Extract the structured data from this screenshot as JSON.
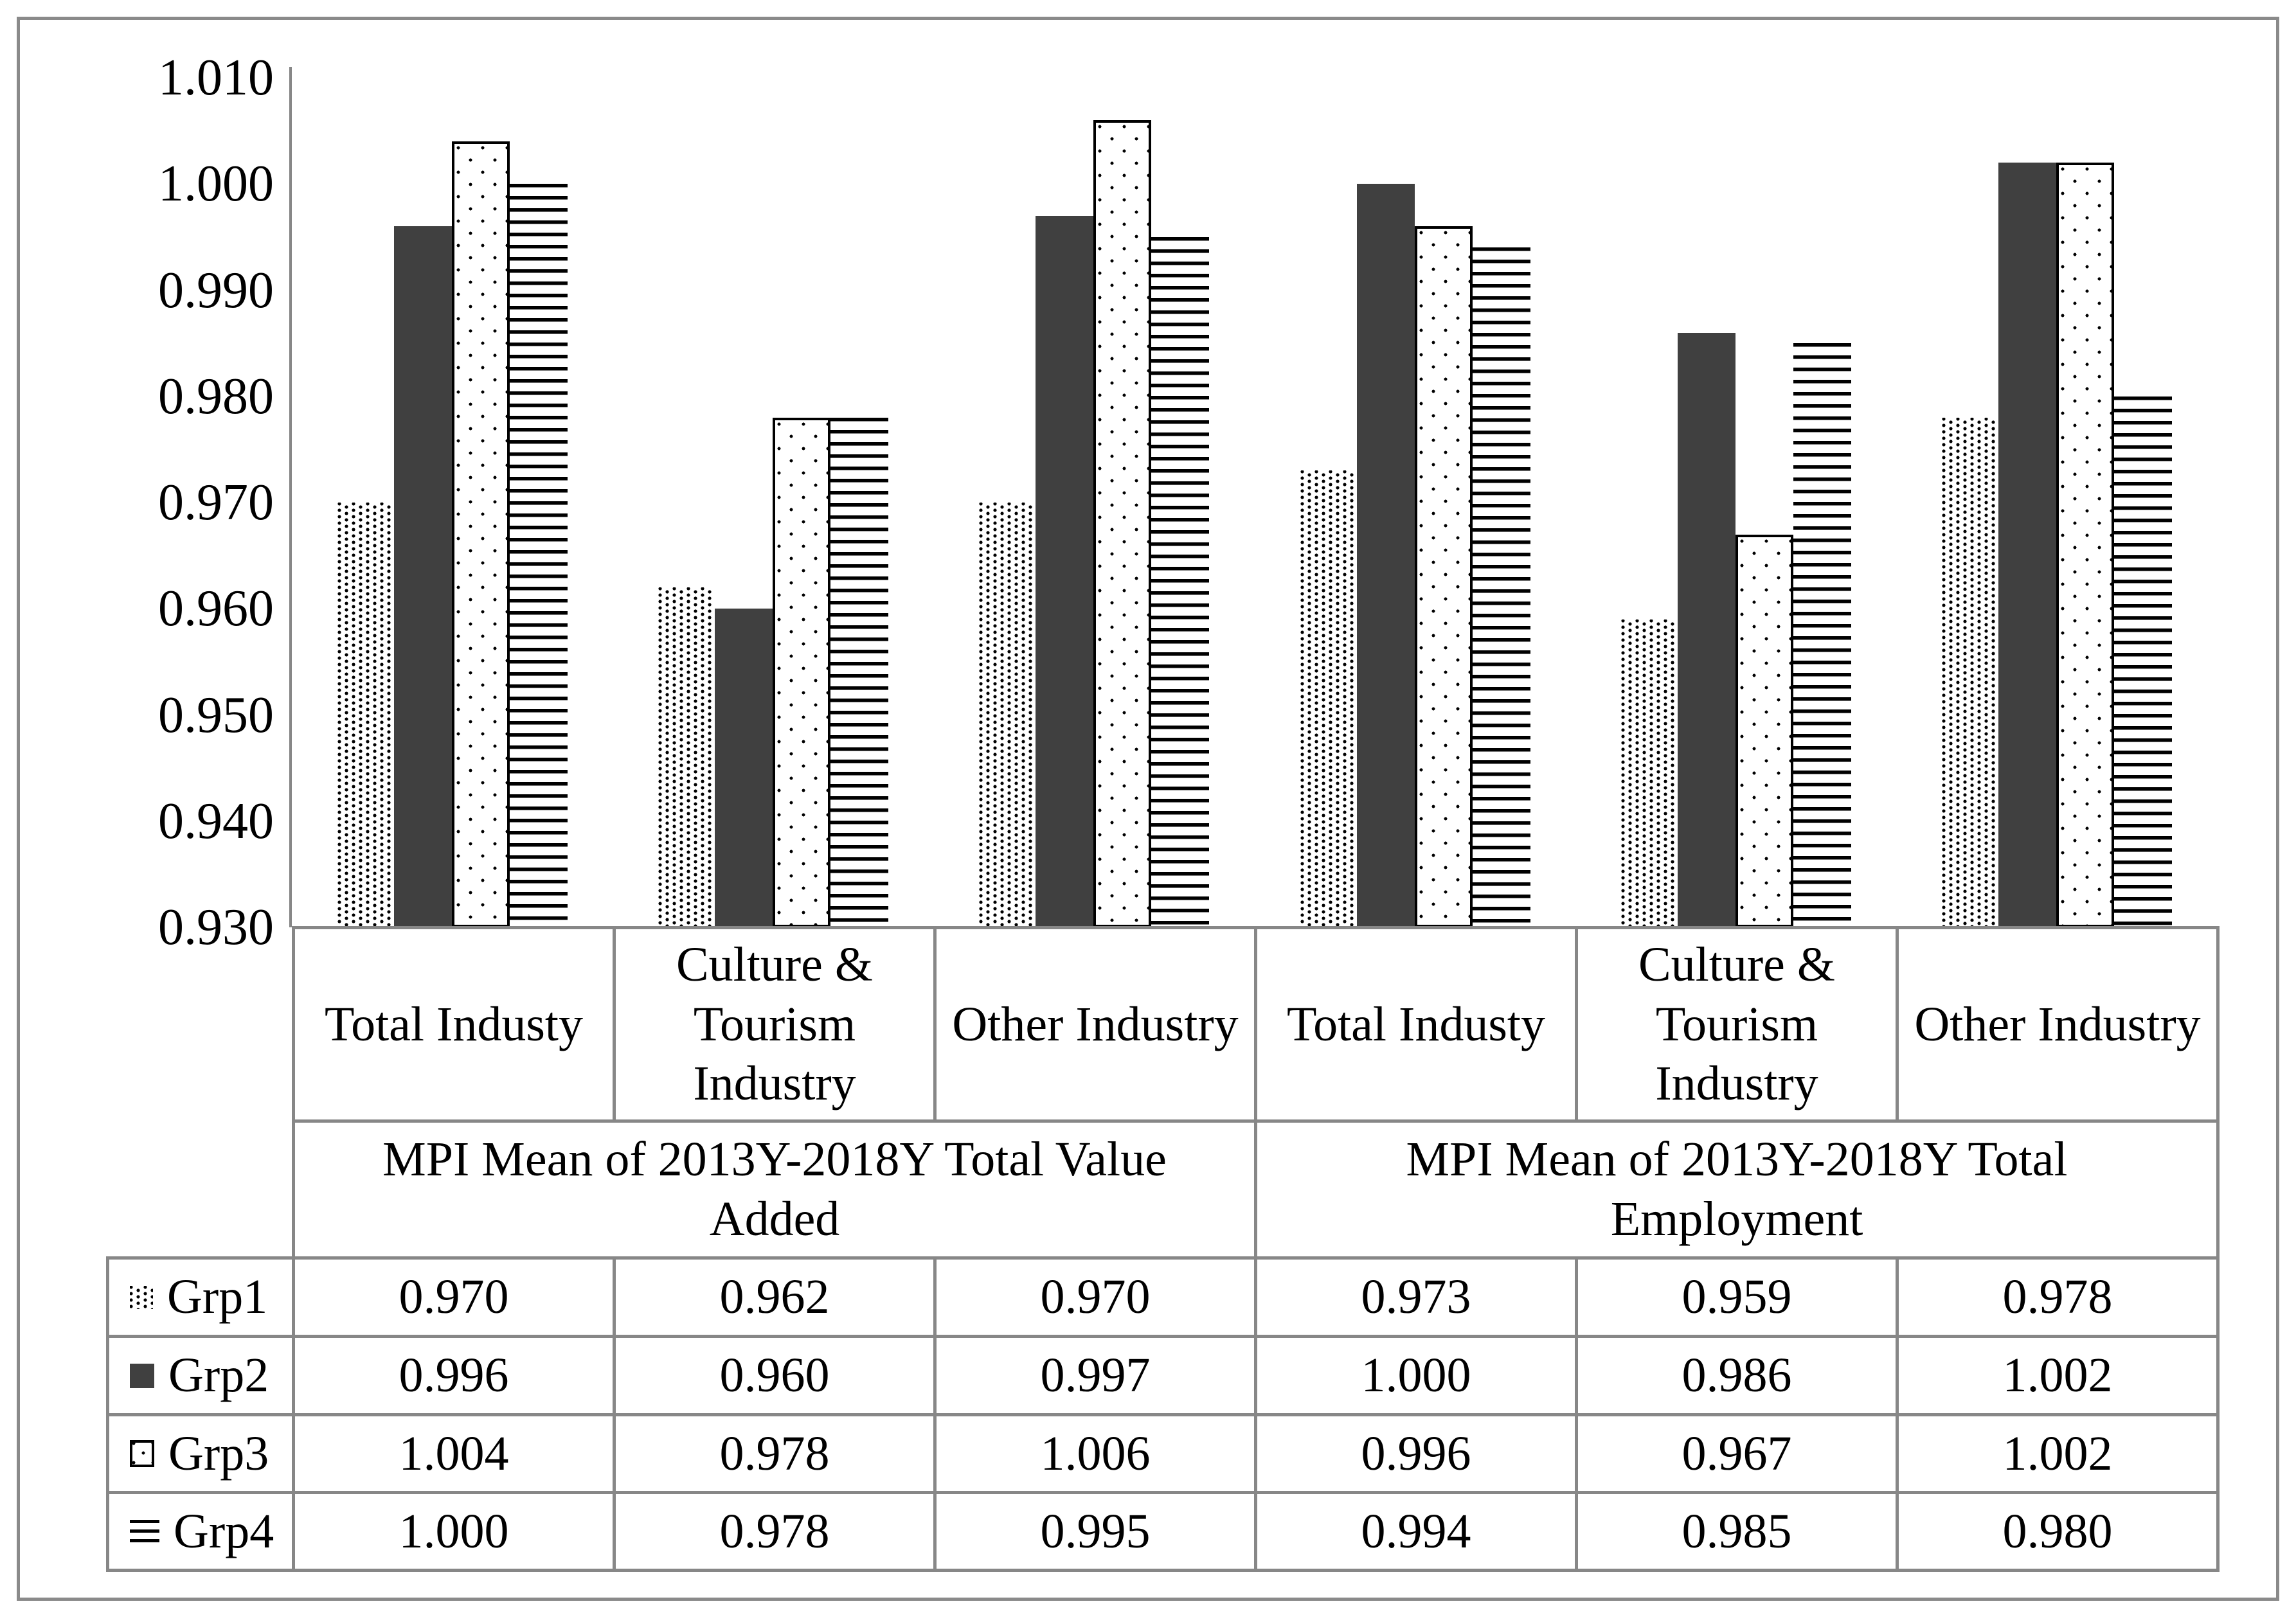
{
  "figure": {
    "background": "#ffffff",
    "border_color": "#8a8a8a",
    "grid_color": "#878787",
    "text_color": "#000000",
    "solid_bar_color": "#404040"
  },
  "chart_data": {
    "type": "bar",
    "title": "",
    "xlabel": "",
    "ylabel": "",
    "ylim": [
      0.93,
      1.01
    ],
    "ytick_labels": [
      "1.010",
      "1.000",
      "0.990",
      "0.980",
      "0.970",
      "0.960",
      "0.950",
      "0.940",
      "0.930"
    ],
    "grid": false,
    "legend_position": "table-left",
    "value_format": "3-decimals",
    "categories": [
      "Total Industy",
      "Culture & Tourism Industry",
      "Other Industry",
      "Total Industy",
      "Culture & Tourism Industry",
      "Other Industry"
    ],
    "category_groups": [
      {
        "label": "MPI Mean of 2013Y-2018Y Total Value Added",
        "span": 3
      },
      {
        "label": "MPI Mean of 2013Y-2018Y Total Employment",
        "span": 3
      }
    ],
    "series": [
      {
        "name": "Grp1",
        "pattern": "fine-dots",
        "values": [
          0.97,
          0.962,
          0.97,
          0.973,
          0.959,
          0.978
        ]
      },
      {
        "name": "Grp2",
        "pattern": "solid",
        "values": [
          0.996,
          0.96,
          0.997,
          1.0,
          0.986,
          1.002
        ]
      },
      {
        "name": "Grp3",
        "pattern": "sparse-dots",
        "values": [
          1.004,
          0.978,
          1.006,
          0.996,
          0.967,
          1.002
        ]
      },
      {
        "name": "Grp4",
        "pattern": "h-lines",
        "values": [
          1.0,
          0.978,
          0.995,
          0.994,
          0.985,
          0.98
        ]
      }
    ]
  }
}
